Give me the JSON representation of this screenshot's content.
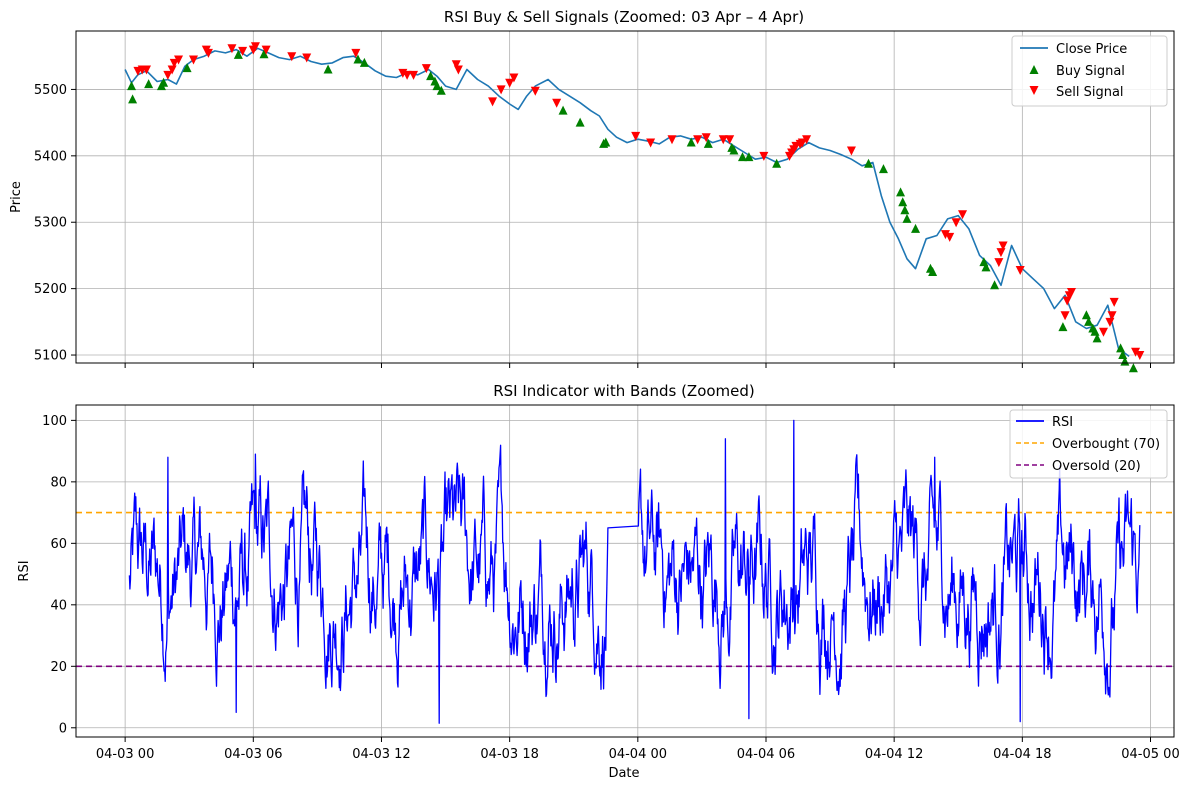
{
  "chart_data": [
    {
      "type": "line",
      "title": "RSI Buy & Sell Signals (Zoomed: 03 Apr – 4 Apr)",
      "xlabel": "",
      "ylabel": "Price",
      "xlim_hours": [
        -2.3,
        49.1
      ],
      "ylim": [
        5088,
        5588
      ],
      "yticks": [
        5100,
        5200,
        5300,
        5400,
        5500
      ],
      "grid": true,
      "legend_position": "top-right",
      "x_unit": "hours since 04-03 00:00",
      "series": [
        {
          "name": "Close Price",
          "color": "#1f77b4",
          "x": [
            0,
            0.3,
            0.6,
            1.0,
            1.5,
            2.0,
            2.4,
            2.8,
            3.2,
            3.7,
            4.2,
            4.7,
            5.2,
            5.7,
            6.2,
            6.7,
            7.2,
            7.7,
            8.2,
            8.7,
            9.2,
            9.7,
            10.2,
            10.7,
            11.2,
            11.7,
            12.2,
            12.7,
            13.2,
            13.7,
            14.2,
            14.6,
            15.0,
            15.5,
            16.0,
            16.5,
            17.0,
            17.5,
            18.0,
            18.4,
            18.8,
            19.2,
            19.8,
            20.3,
            20.8,
            21.3,
            21.8,
            22.2,
            22.6,
            23.0,
            23.5,
            24.0,
            24.5,
            25.0,
            25.5,
            26.0,
            26.5,
            27.0,
            27.5,
            28.0,
            28.5,
            29.0,
            29.5,
            30.0,
            30.5,
            31.0,
            31.5,
            32.0,
            32.5,
            33.0,
            33.5,
            34.0,
            34.5,
            35.0,
            35.4,
            35.8,
            36.2,
            36.6,
            37.0,
            37.5,
            38.0,
            38.5,
            39.0,
            39.5,
            40.0,
            40.5,
            41.0,
            41.5,
            42.0,
            42.5,
            43.0,
            43.5,
            44.0,
            44.5,
            45.0,
            45.5,
            46.0,
            46.5,
            47.0
          ],
          "y": [
            5530,
            5510,
            5522,
            5528,
            5512,
            5515,
            5508,
            5535,
            5545,
            5550,
            5558,
            5555,
            5560,
            5550,
            5562,
            5555,
            5548,
            5545,
            5550,
            5542,
            5538,
            5540,
            5548,
            5550,
            5540,
            5528,
            5520,
            5518,
            5525,
            5522,
            5530,
            5520,
            5505,
            5500,
            5530,
            5515,
            5505,
            5490,
            5478,
            5470,
            5490,
            5505,
            5515,
            5500,
            5490,
            5480,
            5468,
            5460,
            5440,
            5428,
            5420,
            5425,
            5422,
            5418,
            5428,
            5430,
            5425,
            5428,
            5420,
            5425,
            5415,
            5405,
            5395,
            5398,
            5390,
            5395,
            5410,
            5420,
            5412,
            5408,
            5402,
            5395,
            5385,
            5390,
            5340,
            5300,
            5275,
            5245,
            5230,
            5275,
            5280,
            5305,
            5310,
            5290,
            5250,
            5235,
            5205,
            5265,
            5230,
            5215,
            5200,
            5170,
            5190,
            5150,
            5140,
            5145,
            5175,
            5110,
            5098
          ]
        }
      ],
      "buy_signals": {
        "name": "Buy Signal",
        "color": "#008000",
        "x": [
          0.3,
          0.35,
          1.1,
          1.7,
          1.8,
          2.9,
          5.3,
          6.5,
          9.5,
          10.9,
          11.2,
          14.3,
          14.5,
          14.6,
          14.8,
          20.5,
          21.3,
          22.4,
          22.5,
          26.5,
          27.3,
          28.4,
          28.5,
          28.9,
          29.2,
          30.5,
          34.8,
          35.5,
          36.3,
          36.4,
          36.5,
          36.6,
          37.0,
          37.7,
          37.8,
          40.2,
          40.3,
          40.7,
          43.9,
          45.0,
          45.1,
          45.3,
          45.4,
          45.5,
          46.6,
          46.7,
          46.8,
          47.2
        ],
        "y": [
          5505,
          5485,
          5508,
          5505,
          5510,
          5532,
          5552,
          5553,
          5530,
          5545,
          5540,
          5520,
          5512,
          5505,
          5498,
          5468,
          5450,
          5418,
          5420,
          5420,
          5418,
          5412,
          5408,
          5398,
          5398,
          5388,
          5388,
          5380,
          5345,
          5330,
          5318,
          5305,
          5290,
          5230,
          5225,
          5240,
          5232,
          5205,
          5142,
          5160,
          5150,
          5140,
          5135,
          5125,
          5110,
          5100,
          5090,
          5080
        ]
      },
      "sell_signals": {
        "name": "Sell Signal",
        "color": "#ff0000",
        "x": [
          0.6,
          0.8,
          1.0,
          2.0,
          2.2,
          2.3,
          2.5,
          3.2,
          3.8,
          3.9,
          5.0,
          5.5,
          6.0,
          6.1,
          6.6,
          7.8,
          8.5,
          10.8,
          13.0,
          13.2,
          13.5,
          14.1,
          15.5,
          15.6,
          17.2,
          17.6,
          18.0,
          18.2,
          19.2,
          20.2,
          23.9,
          24.6,
          25.6,
          26.8,
          27.2,
          28.0,
          28.3,
          29.9,
          31.1,
          31.2,
          31.3,
          31.4,
          31.6,
          31.7,
          31.9,
          34.0,
          38.4,
          38.6,
          38.9,
          39.2,
          40.9,
          41.0,
          41.1,
          41.9,
          44.0,
          44.1,
          44.2,
          44.3,
          45.8,
          46.1,
          46.2,
          46.3,
          47.3,
          47.5
        ],
        "y": [
          5528,
          5530,
          5530,
          5522,
          5530,
          5540,
          5545,
          5545,
          5560,
          5555,
          5562,
          5558,
          5560,
          5565,
          5560,
          5550,
          5548,
          5555,
          5525,
          5522,
          5522,
          5532,
          5538,
          5530,
          5482,
          5500,
          5510,
          5518,
          5498,
          5480,
          5430,
          5420,
          5425,
          5425,
          5428,
          5425,
          5425,
          5400,
          5400,
          5405,
          5410,
          5415,
          5418,
          5420,
          5425,
          5408,
          5282,
          5278,
          5300,
          5312,
          5240,
          5255,
          5265,
          5228,
          5160,
          5182,
          5190,
          5195,
          5135,
          5150,
          5160,
          5180,
          5105,
          5100
        ]
      }
    },
    {
      "type": "line",
      "title": "RSI Indicator with Bands (Zoomed)",
      "xlabel": "Date",
      "ylabel": "RSI",
      "xlim_hours": [
        -2.3,
        49.1
      ],
      "ylim": [
        -3,
        105
      ],
      "yticks": [
        0,
        20,
        40,
        60,
        80,
        100
      ],
      "xticks_hours": [
        0,
        6,
        12,
        18,
        24,
        30,
        36,
        42,
        48
      ],
      "xtick_labels": [
        "04-03 00",
        "04-03 06",
        "04-03 12",
        "04-03 18",
        "04-04 00",
        "04-04 06",
        "04-04 12",
        "04-04 18",
        "04-05 00"
      ],
      "grid": true,
      "legend_position": "top-right",
      "series": [
        {
          "name": "RSI",
          "color": "#0000ff",
          "x_range_hours": [
            0.2,
            47.5
          ],
          "gap_hours": [
            22.6,
            24.0
          ],
          "style": "dense oscillation between about 5 and 95 with spikes",
          "peaks": [
            {
              "x": 31.3,
              "y": 100
            },
            {
              "x": 28.1,
              "y": 94
            },
            {
              "x": 6.1,
              "y": 89
            },
            {
              "x": 2.0,
              "y": 88
            },
            {
              "x": 37.9,
              "y": 88
            }
          ],
          "troughs": [
            {
              "x": 14.7,
              "y": 1.5
            },
            {
              "x": 41.9,
              "y": 2
            },
            {
              "x": 29.2,
              "y": 3
            },
            {
              "x": 5.2,
              "y": 5
            }
          ]
        },
        {
          "name": "Overbought (70)",
          "color": "#ffa500",
          "value": 70,
          "dash": "dashed"
        },
        {
          "name": "Oversold (20)",
          "color": "#800080",
          "value": 20,
          "dash": "dashed"
        }
      ]
    }
  ]
}
